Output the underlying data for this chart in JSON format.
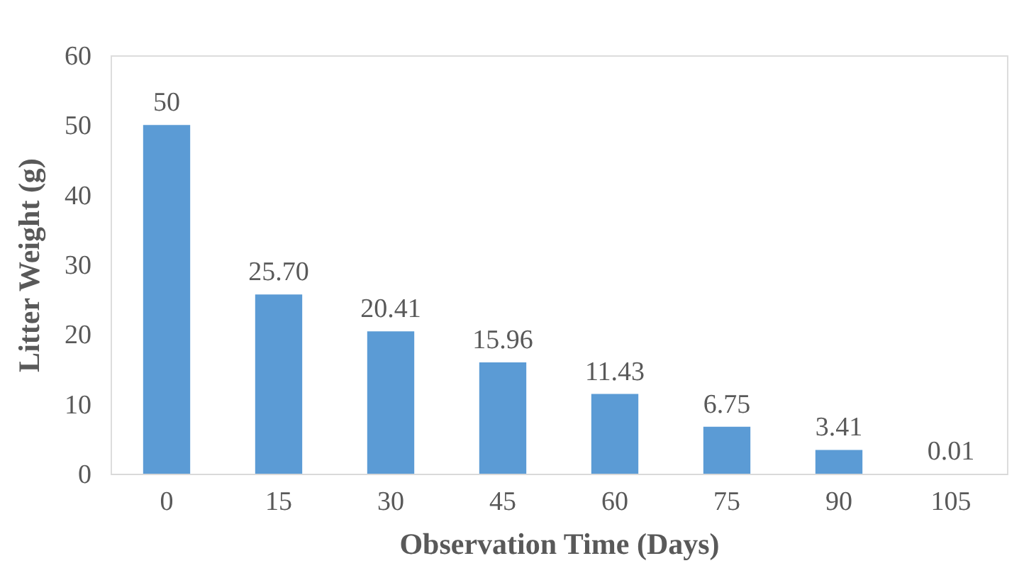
{
  "chart_data": {
    "type": "bar",
    "xlabel": "Observation Time (Days)",
    "ylabel": "Litter Weight (g)",
    "categories": [
      "0",
      "15",
      "30",
      "45",
      "60",
      "75",
      "90",
      "105"
    ],
    "values": [
      50,
      25.7,
      20.41,
      15.96,
      11.43,
      6.75,
      3.41,
      0.01
    ],
    "value_labels": [
      "50",
      "25.70",
      "20.41",
      "15.96",
      "11.43",
      "6.75",
      "3.41",
      "0.01"
    ],
    "color": "#5b9bd5",
    "ylim": [
      0,
      60
    ],
    "yticks": [
      0,
      10,
      20,
      30,
      40,
      50,
      60
    ],
    "grid": false
  }
}
